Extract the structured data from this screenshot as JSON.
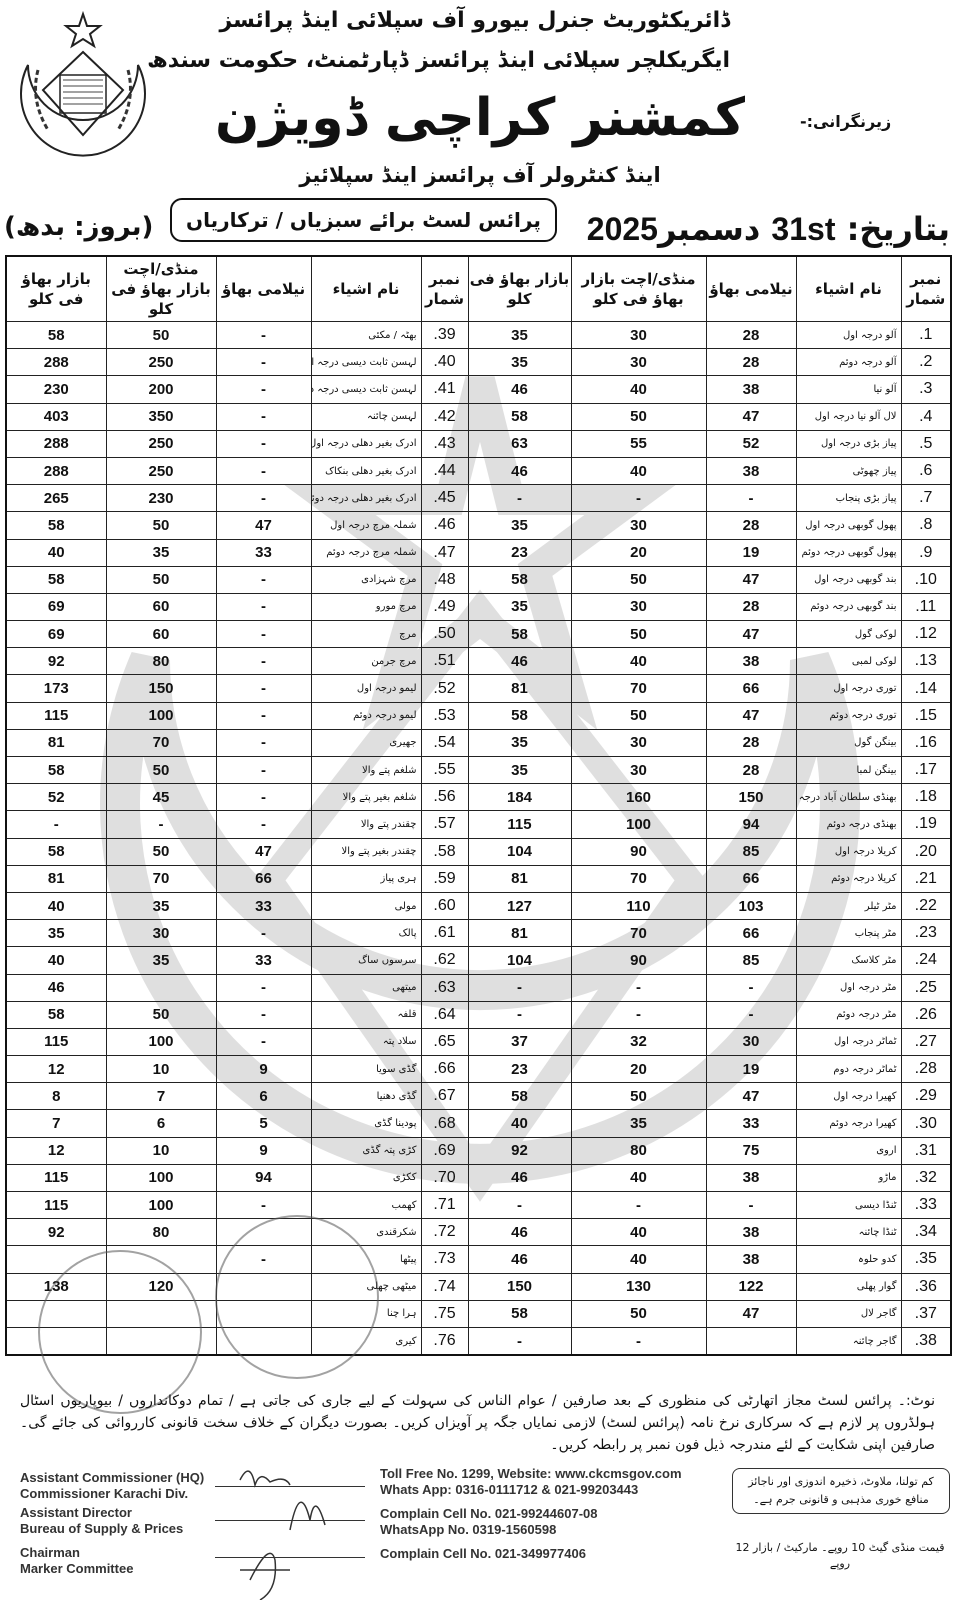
{
  "header": {
    "line1": "ڈائریکٹوریٹ جنرل بیورو آف سپلائی اینڈ پرائسز",
    "line2": "ایگریکلچر سپلائی اینڈ پرائسز ڈپارٹمنٹ، حکومت سندھ",
    "supervision": "زیرنگرانی:-",
    "title": "کمشنر کراچی ڈویژن",
    "line4": "اینڈ کنٹرولر آف پرائسز اینڈ سپلائیز",
    "subtitle": "پرائس لسٹ برائے سبزیاں / ترکاریاں",
    "date_label": "بتاریخ:",
    "date_day": "31st",
    "date_month": "دسمبر",
    "date_year": "2025",
    "weekday": "(بروز: بدھ)",
    "emblem_text": "حکومت سندھ"
  },
  "table": {
    "headers": {
      "serial": "نمبر شمار",
      "name": "نام اشیاء",
      "auction": "نیلامی بھاؤ",
      "mandi": "منڈی/اچت بازار بھاؤ فی کلو",
      "bazaar": "بازار بھاؤ فی کلو"
    },
    "right": [
      [
        "1.",
        "آلو درجہ اول",
        "28",
        "30",
        "35"
      ],
      [
        "2.",
        "آلو درجہ دوئم",
        "28",
        "30",
        "35"
      ],
      [
        "3.",
        "آلو نیا",
        "38",
        "40",
        "46"
      ],
      [
        "4.",
        "لال آلو نیا درجہ اول",
        "47",
        "50",
        "58"
      ],
      [
        "5.",
        "پیاز بڑی درجہ اول",
        "52",
        "55",
        "63"
      ],
      [
        "6.",
        "پیاز چھوٹی",
        "38",
        "40",
        "46"
      ],
      [
        "7.",
        "پیاز بڑی پنجاب",
        "-",
        "-",
        "-"
      ],
      [
        "8.",
        "پھول گوبھی درجہ اول",
        "28",
        "30",
        "35"
      ],
      [
        "9.",
        "پھول گوبھی درجہ دوئم",
        "19",
        "20",
        "23"
      ],
      [
        "10.",
        "بند گوبھی درجہ اول",
        "47",
        "50",
        "58"
      ],
      [
        "11.",
        "بند گوبھی درجہ دوئم",
        "28",
        "30",
        "35"
      ],
      [
        "12.",
        "لوکی گول",
        "47",
        "50",
        "58"
      ],
      [
        "13.",
        "لوکی لمبی",
        "38",
        "40",
        "46"
      ],
      [
        "14.",
        "توری درجہ اول",
        "66",
        "70",
        "81"
      ],
      [
        "15.",
        "توری درجہ دوئم",
        "47",
        "50",
        "58"
      ],
      [
        "16.",
        "بینگن گول",
        "28",
        "30",
        "35"
      ],
      [
        "17.",
        "بینگن لمبا",
        "28",
        "30",
        "35"
      ],
      [
        "18.",
        "بھنڈی سلطان آباد درجہ اول",
        "150",
        "160",
        "184"
      ],
      [
        "19.",
        "بھنڈی درجہ دوئم",
        "94",
        "100",
        "115"
      ],
      [
        "20.",
        "کریلا درجہ اول",
        "85",
        "90",
        "104"
      ],
      [
        "21.",
        "کریلا درجہ دوئم",
        "66",
        "70",
        "81"
      ],
      [
        "22.",
        "مٹر ٹیلر",
        "103",
        "110",
        "127"
      ],
      [
        "23.",
        "مٹر پنجاب",
        "66",
        "70",
        "81"
      ],
      [
        "24.",
        "مٹر کلاسک",
        "85",
        "90",
        "104"
      ],
      [
        "25.",
        "مٹر درجہ اول",
        "-",
        "-",
        "-"
      ],
      [
        "26.",
        "مٹر درجہ دوئم",
        "-",
        "-",
        "-"
      ],
      [
        "27.",
        "ٹماٹر درجہ اول",
        "30",
        "32",
        "37"
      ],
      [
        "28.",
        "ٹماٹر درجہ دوم",
        "19",
        "20",
        "23"
      ],
      [
        "29.",
        "کھیرا درجہ اول",
        "47",
        "50",
        "58"
      ],
      [
        "30.",
        "کھیرا درجہ دوئم",
        "33",
        "35",
        "40"
      ],
      [
        "31.",
        "اروی",
        "75",
        "80",
        "92"
      ],
      [
        "32.",
        "ماڑو",
        "38",
        "40",
        "46"
      ],
      [
        "33.",
        "ٹنڈا دیسی",
        "-",
        "-",
        "-"
      ],
      [
        "34.",
        "ٹنڈا چائنہ",
        "38",
        "40",
        "46"
      ],
      [
        "35.",
        "کدو حلوہ",
        "38",
        "40",
        "46"
      ],
      [
        "36.",
        "گوار پھلی",
        "122",
        "130",
        "150"
      ],
      [
        "37.",
        "گاجر لال",
        "47",
        "50",
        "58"
      ],
      [
        "38.",
        "گاجر چائنہ",
        "",
        "-",
        "-"
      ]
    ],
    "left": [
      [
        "39.",
        "بھٹہ / مکئی",
        "-",
        "50",
        "58"
      ],
      [
        "40.",
        "لہسن ثابت دیسی درجہ اول",
        "-",
        "250",
        "288"
      ],
      [
        "41.",
        "لہسن ثابت دیسی درجہ دوئم",
        "-",
        "200",
        "230"
      ],
      [
        "42.",
        "لہسن چائنہ",
        "-",
        "350",
        "403"
      ],
      [
        "43.",
        "ادرک بغیر دھلی درجہ اول چائنہ",
        "-",
        "250",
        "288"
      ],
      [
        "44.",
        "ادرک بغیر دھلی بنکاک",
        "-",
        "250",
        "288"
      ],
      [
        "45.",
        "ادرک بغیر دھلی درجہ دوئم",
        "-",
        "230",
        "265"
      ],
      [
        "46.",
        "شملہ مرچ درجہ اول",
        "47",
        "50",
        "58"
      ],
      [
        "47.",
        "شملہ مرچ درجہ دوئم",
        "33",
        "35",
        "40"
      ],
      [
        "48.",
        "مرچ شہزادی",
        "-",
        "50",
        "58"
      ],
      [
        "49.",
        "مرچ مورو",
        "-",
        "60",
        "69"
      ],
      [
        "50.",
        "مرچ",
        "-",
        "60",
        "69"
      ],
      [
        "51.",
        "مرچ جرمن",
        "-",
        "80",
        "92"
      ],
      [
        "52.",
        "لیمو درجہ اول",
        "-",
        "150",
        "173"
      ],
      [
        "53.",
        "لیمو درجہ دوئم",
        "-",
        "100",
        "115"
      ],
      [
        "54.",
        "جھیری",
        "-",
        "70",
        "81"
      ],
      [
        "55.",
        "شلغم پتے والا",
        "-",
        "50",
        "58"
      ],
      [
        "56.",
        "شلغم بغیر پتے والا",
        "-",
        "45",
        "52"
      ],
      [
        "57.",
        "چقندر پتے والا",
        "-",
        "-",
        "-"
      ],
      [
        "58.",
        "چقندر بغیر پتے والا",
        "47",
        "50",
        "58"
      ],
      [
        "59.",
        "ہری پیاز",
        "66",
        "70",
        "81"
      ],
      [
        "60.",
        "مولی",
        "33",
        "35",
        "40"
      ],
      [
        "61.",
        "پالک",
        "-",
        "30",
        "35"
      ],
      [
        "62.",
        "سرسوں ساگ",
        "33",
        "35",
        "40"
      ],
      [
        "63.",
        "میتھی",
        "-",
        "",
        "46"
      ],
      [
        "64.",
        "قلفہ",
        "-",
        "50",
        "58"
      ],
      [
        "65.",
        "سلاد پتہ",
        "-",
        "100",
        "115"
      ],
      [
        "66.",
        "گڈی سویا",
        "9",
        "10",
        "12"
      ],
      [
        "67.",
        "گڈی دھنیا",
        "6",
        "7",
        "8"
      ],
      [
        "68.",
        "پودینا گڈی",
        "5",
        "6",
        "7"
      ],
      [
        "69.",
        "کڑی پتہ گڈی",
        "9",
        "10",
        "12"
      ],
      [
        "70.",
        "ککڑی",
        "94",
        "100",
        "115"
      ],
      [
        "71.",
        "کھمب",
        "-",
        "100",
        "115"
      ],
      [
        "72.",
        "شکرقندی",
        "",
        "80",
        "92"
      ],
      [
        "73.",
        "پیٹھا",
        "-",
        "",
        ""
      ],
      [
        "74.",
        "میٹھی چھلی",
        "",
        "120",
        "138"
      ],
      [
        "75.",
        "ہرا چنا",
        "",
        "",
        ""
      ],
      [
        "76.",
        "کیری",
        "",
        "",
        ""
      ]
    ]
  },
  "note": "نوٹ:۔ پرائس لسٹ مجاز اتھارٹی کی منظوری کے بعد صارفین / عوام الناس کی سہولت کے لیے جاری کی جاتی ہے / تمام دوکانداروں / بیوپاریوں اسٹال ہولڈروں پر لازم ہے کہ سرکاری نرخ نامہ (پرائس لسٹ) لازمی نمایاں جگہ پر آویزاں کریں۔ بصورت دیگران کے خلاف سخت قانونی کارروائی کی جائے گی۔ صارفین اپنی شکایت کے لئے مندرجہ ذیل فون نمبر پر رابطہ کریں۔",
  "signatories": [
    {
      "line1": "Assistant Commissioner (HQ)",
      "line2": "Commissioner Karachi Div."
    },
    {
      "line1": "Assistant Director",
      "line2": "Bureau of Supply & Prices"
    },
    {
      "line1": "Chairman",
      "line2": "Marker Committee"
    }
  ],
  "contacts": {
    "tollfree": "Toll Free No. 1299, Website: www.ckcmsgov.com",
    "whatsapp1": "Whats App: 0316-0111712 & 021-99203443",
    "complain1": "Complain Cell No. 021-99244607-08",
    "whatsapp2": "WhatsApp No. 0319-1560598",
    "complain2": "Complain Cell No. 021-349977406"
  },
  "warning": "کم تولنا، ملاوٹ، ذخیرہ اندوزی اور ناجائز منافع خوری مذہبی و قانونی جرم ہے۔",
  "price_note": "قیمت منڈی گیٹ 10 روپے۔ مارکیٹ / بازار 12 روپے",
  "stamps": [
    "Assistant Commissioner (HQ) Commissioner Office Karachi Division",
    "Directorate General Bureau of Supply & Prices"
  ]
}
